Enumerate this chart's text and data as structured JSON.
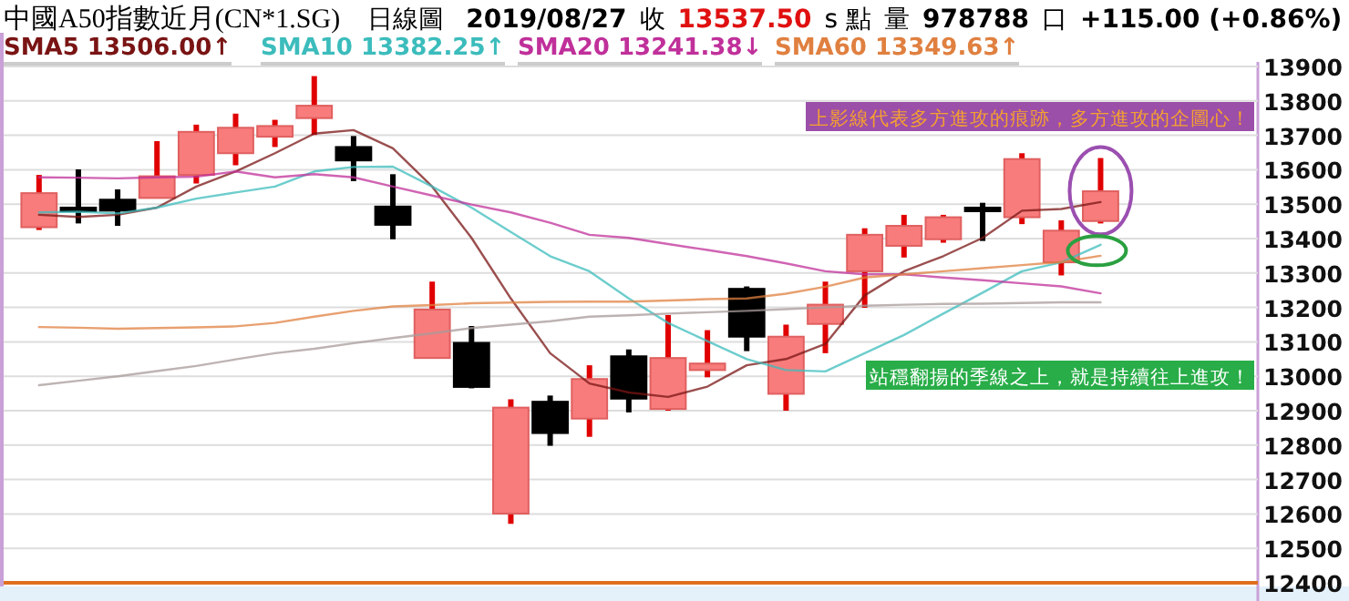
{
  "chart_data": {
    "type": "candlestick",
    "title": "中國A50指數近月(CN*1.SG)",
    "subtitle": "日線圖",
    "categories": [
      null,
      null,
      null,
      null,
      null,
      null,
      null,
      null,
      null,
      null,
      null,
      null,
      null,
      null,
      null,
      null,
      null,
      null,
      null,
      null,
      null,
      null,
      null,
      null,
      null,
      null,
      null,
      null
    ],
    "ohlc": [
      [
        13433,
        13585,
        13425,
        13532
      ],
      [
        13490,
        13601,
        13444,
        13485
      ],
      [
        13513,
        13543,
        13437,
        13481
      ],
      [
        13518,
        13683,
        13518,
        13581
      ],
      [
        13585,
        13731,
        13560,
        13710
      ],
      [
        13648,
        13763,
        13613,
        13722
      ],
      [
        13696,
        13745,
        13666,
        13727
      ],
      [
        13750,
        13872,
        13701,
        13786
      ],
      [
        13666,
        13698,
        13567,
        13627
      ],
      [
        13493,
        13587,
        13398,
        13440
      ],
      [
        13053,
        13275,
        13053,
        13194
      ],
      [
        13097,
        13146,
        12965,
        12969
      ],
      [
        12601,
        12933,
        12571,
        12909
      ],
      [
        12926,
        12944,
        12798,
        12835
      ],
      [
        12877,
        13032,
        12824,
        12992
      ],
      [
        13058,
        13078,
        12895,
        12935
      ],
      [
        12905,
        13178,
        12900,
        13053
      ],
      [
        13018,
        13134,
        12997,
        13037
      ],
      [
        13254,
        13261,
        13073,
        13115
      ],
      [
        12949,
        13150,
        12900,
        13115
      ],
      [
        13152,
        13275,
        13067,
        13208
      ],
      [
        13305,
        13430,
        13199,
        13411
      ],
      [
        13379,
        13469,
        13345,
        13437
      ],
      [
        13398,
        13469,
        13388,
        13462
      ],
      [
        13490,
        13504,
        13393,
        13486
      ],
      [
        13462,
        13648,
        13442,
        13631
      ],
      [
        13331,
        13453,
        13293,
        13423
      ],
      [
        13451,
        13634,
        13444,
        13537.5
      ]
    ],
    "series": [
      {
        "type": "line",
        "name": "SMA5 13506.00↑",
        "color": "#7a1414",
        "values": [
          13469,
          13463,
          13469,
          13490,
          13551,
          13595,
          13648,
          13705,
          13715,
          13662,
          13551,
          13402,
          13226,
          13067,
          12979,
          12953,
          12940,
          12970,
          13032,
          13050,
          13094,
          13235,
          13305,
          13349,
          13402,
          13481,
          13486,
          13506
        ]
      },
      {
        "type": "line",
        "name": "SMA10 13382.25↑",
        "color": "#3cbcbc",
        "values": [
          13476,
          13478,
          13473,
          13490,
          13516,
          13534,
          13551,
          13595,
          13608,
          13609,
          13551,
          13490,
          13419,
          13349,
          13305,
          13226,
          13155,
          13102,
          13050,
          13018,
          13014,
          13067,
          13120,
          13182,
          13243,
          13305,
          13331,
          13382
        ]
      },
      {
        "type": "line",
        "name": "SMA20 13241.38↓",
        "color": "#c0309a",
        "values": [
          13578,
          13577,
          13575,
          13578,
          13580,
          13595,
          13578,
          13587,
          13578,
          13551,
          13525,
          13499,
          13476,
          13446,
          13411,
          13402,
          13384,
          13367,
          13349,
          13328,
          13305,
          13296,
          13296,
          13287,
          13279,
          13270,
          13261,
          13241
        ]
      },
      {
        "type": "line",
        "name": "SMA60 13349.63↑",
        "color": "#e08040",
        "values": [
          13143,
          13141,
          13138,
          13140,
          13142,
          13145,
          13155,
          13173,
          13190,
          13203,
          13207,
          13212,
          13214,
          13216,
          13217,
          13217,
          13220,
          13224,
          13226,
          13240,
          13260,
          13287,
          13296,
          13305,
          13314,
          13323,
          13332,
          13350
        ]
      },
      {
        "type": "line",
        "color": "#a89a9a",
        "values": [
          12974,
          12987,
          13000,
          13015,
          13030,
          13049,
          13067,
          13080,
          13096,
          13111,
          13125,
          13140,
          13150,
          13160,
          13173,
          13177,
          13182,
          13186,
          13190,
          13195,
          13200,
          13205,
          13208,
          13210,
          13211,
          13213,
          13215,
          13215
        ]
      }
    ],
    "ylim": [
      12400,
      13900
    ],
    "yticks": [
      12400,
      12500,
      12600,
      12700,
      12800,
      12900,
      13000,
      13100,
      13200,
      13300,
      13400,
      13500,
      13600,
      13700,
      13800,
      13900
    ],
    "grid": "y",
    "legend": "top",
    "tick_labels": "y",
    "ref_lines": [
      {
        "axis": "y",
        "value": 12400,
        "color": "#e07020"
      }
    ],
    "annotations": [
      "2019/08/27",
      "收",
      "13537.50",
      "s 點",
      "量",
      "978788",
      "口",
      "+115.00 (+0.86%)",
      "上影線代表多方進攻的痕跡，多方進攻的企圖心！",
      "站穩翻揚的季線之上，就是持續往上進攻！"
    ]
  }
}
